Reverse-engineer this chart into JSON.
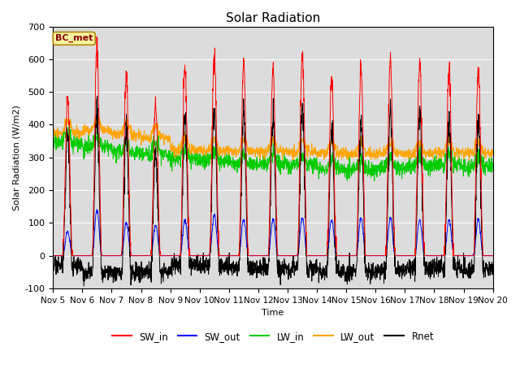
{
  "title": "Solar Radiation",
  "ylabel": "Solar Radiation (W/m2)",
  "xlabel": "Time",
  "ylim": [
    -100,
    700
  ],
  "yticks": [
    -100,
    0,
    100,
    200,
    300,
    400,
    500,
    600,
    700
  ],
  "xtick_labels": [
    "Nov 5",
    "Nov 6",
    "Nov 7",
    "Nov 8",
    "Nov 9",
    "Nov 10",
    "Nov 11",
    "Nov 12",
    "Nov 13",
    "Nov 14",
    "Nov 15",
    "Nov 16",
    "Nov 17",
    "Nov 18",
    "Nov 19",
    "Nov 20"
  ],
  "annotation": "BC_met",
  "colors": {
    "SW_in": "#ff0000",
    "SW_out": "#0000ff",
    "LW_in": "#00cc00",
    "LW_out": "#ffa500",
    "Rnet": "#000000"
  },
  "bg_color": "#dcdcdc",
  "n_days": 15,
  "pts_per_day": 144,
  "SW_in_peaks": [
    490,
    640,
    550,
    460,
    570,
    620,
    585,
    570,
    620,
    550,
    580,
    600,
    590,
    575,
    570
  ],
  "SW_out_peaks": [
    75,
    140,
    100,
    90,
    110,
    125,
    110,
    110,
    115,
    110,
    115,
    115,
    110,
    110,
    110
  ],
  "LW_in_base": [
    345,
    330,
    315,
    310,
    295,
    290,
    280,
    280,
    275,
    265,
    262,
    270,
    272,
    278,
    272
  ],
  "LW_out_base": [
    375,
    385,
    370,
    360,
    325,
    322,
    318,
    318,
    318,
    312,
    310,
    312,
    312,
    315,
    314
  ]
}
